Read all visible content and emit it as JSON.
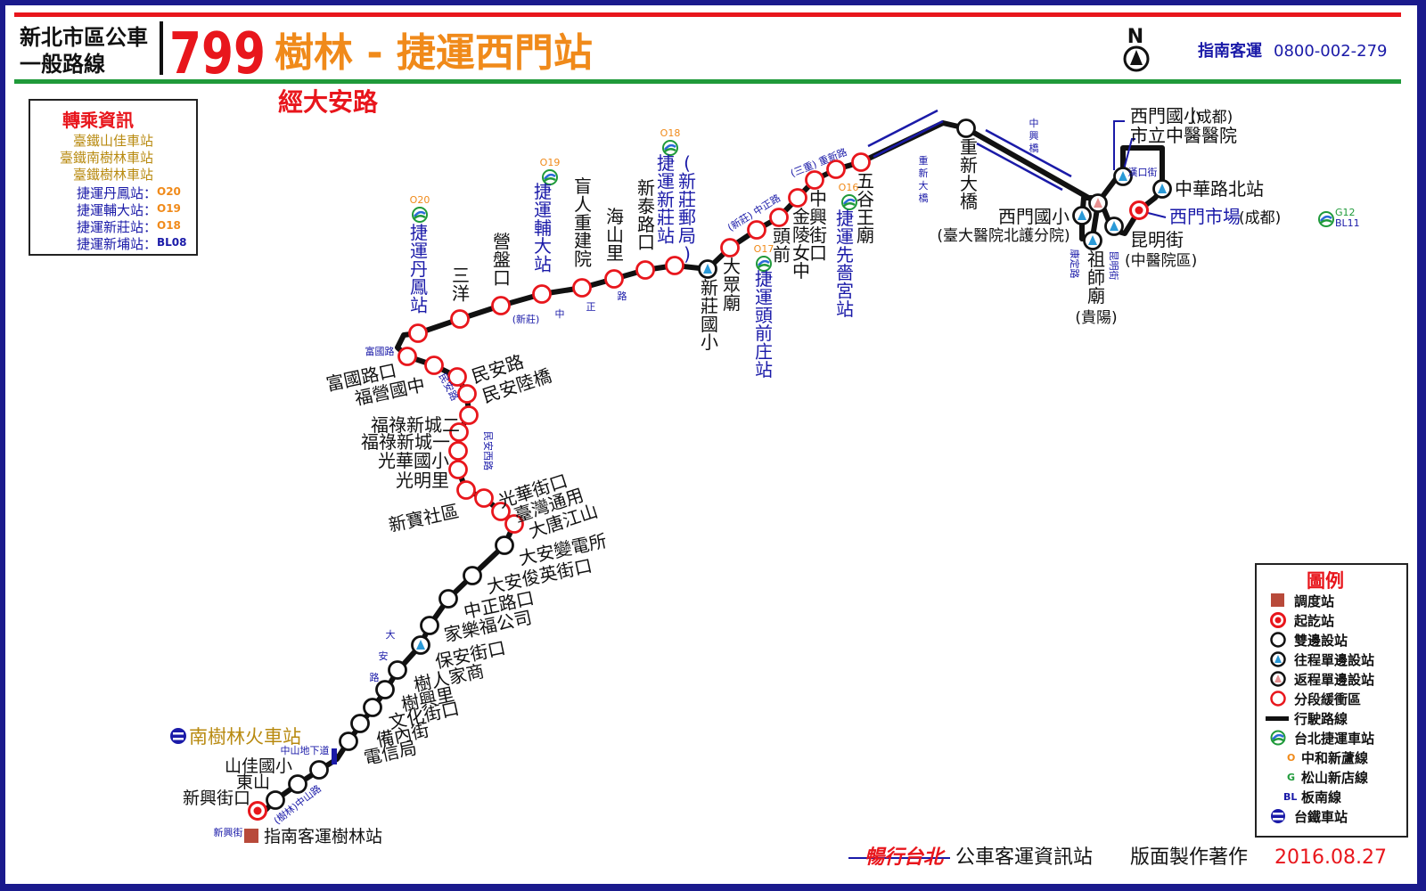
{
  "header": {
    "category_line1": "新北市區公車",
    "category_line2": "一般路線",
    "route_number": "799",
    "route_name": "樹林 - 捷運西門站",
    "via": "經大安路",
    "north_label": "N",
    "operator": "指南客運",
    "phone": "0800-002-279"
  },
  "transfer": {
    "title": "轉乘資訊",
    "rail": [
      "臺鐵山佳車站",
      "臺鐵南樹林車站",
      "臺鐵樹林車站"
    ],
    "metro": [
      {
        "name": "捷運丹鳳站：",
        "code": "O20"
      },
      {
        "name": "捷運輔大站：",
        "code": "O19"
      },
      {
        "name": "捷運新莊站：",
        "code": "O18"
      },
      {
        "name": "捷運新埔站：",
        "code": "BL08"
      }
    ]
  },
  "legend": {
    "title": "圖例",
    "items": [
      "調度站",
      "起訖站",
      "雙邊設站",
      "往程單邊設站",
      "返程單邊設站",
      "分段緩衝區",
      "行駛路線",
      "台北捷運車站"
    ],
    "lines": [
      {
        "code": "O",
        "name": "中和新蘆線"
      },
      {
        "code": "G",
        "name": "松山新店線"
      },
      {
        "code": "BL",
        "name": "板南線"
      }
    ],
    "rail_item": "台鐵車站"
  },
  "footer": {
    "brand": "暢行台北",
    "text": "公車客運資訊站",
    "credit": "版面製作著作",
    "date": "2016.08.27"
  },
  "colors": {
    "red": "#e8161c",
    "orange": "#f08a1a",
    "blue": "#1a1aa8",
    "green": "#1f9a3a",
    "gold": "#b88a10",
    "depot": "#b84a3a"
  },
  "map": {
    "depot_name": "指南客運樹林站",
    "rail_station": "南樹林火車站",
    "metro_codes": {
      "o20": "O20",
      "o19": "O19",
      "o18": "O18",
      "o17": "O17",
      "o16": "O16",
      "g12": "G12",
      "bl11": "BL11"
    },
    "stations": {
      "s01": "新興街口",
      "s02": "東山",
      "s03": "山佳國小",
      "s04": "電信局",
      "s05": "備內街",
      "s06": "文化街口",
      "s07": "樹興里",
      "s08": "樹人家商",
      "s09": "保安街口",
      "s10": "家樂福公司",
      "s11": "中正路口",
      "s12": "大安俊英街口",
      "s13": "大安變電所",
      "s14": "大唐江山",
      "s15": "臺灣通用",
      "s16": "光華街口",
      "s17": "新寶社區",
      "s18": "光明里",
      "s19": "光華國小",
      "s20": "福祿新城一",
      "s21": "福祿新城二",
      "s22": "民安陸橋",
      "s23": "民安路",
      "s24": "福營國中",
      "s25": "富國路口",
      "s26": "捷運丹鳳站",
      "s27": "三洋",
      "s28": "營盤口",
      "s29": "捷運輔大站",
      "s30": "盲人重建院",
      "s31": "海山里",
      "s32": "新泰路口",
      "s33": "捷運新莊站",
      "s33b": "(新莊郵局)",
      "s34": "新莊國小",
      "s35": "大眾廟",
      "s36": "捷運頭前庄站",
      "s37": "頭前",
      "s38": "金陵女中",
      "s39": "中興街口",
      "s40": "捷運先嗇宮站",
      "s41": "五谷王廟",
      "s42": "重新大橋",
      "s42b": "(臺大醫院北護分院)",
      "s43": "西門國小",
      "s44": "祖師廟",
      "s44b": "(貴陽)",
      "s45": "昆明街",
      "s45b": "(中醫院區)",
      "s46": "西門市場",
      "s46b": "(成都)",
      "s47": "中華路北站",
      "s48": "市立中醫醫院",
      "s49": "西門國小",
      "s49b": "(成都)"
    },
    "roads": {
      "r01": "新興街",
      "r02": "(樹林)中山路",
      "r03": "中山地下道",
      "r04": "大",
      "r05": "安",
      "r06": "路",
      "r07": "民安路",
      "r08": "民安西路",
      "r09": "富國路",
      "r10": "(新莊)",
      "r11": "中",
      "r12": "正",
      "r13": "路",
      "r14": "(新莊) 中正路",
      "r15": "(三重) 重新路",
      "r16": "重",
      "r17": "新",
      "r18": "大",
      "r19": "橋",
      "r20": "中",
      "r21": "興",
      "r22": "橋",
      "r23": "漢口街",
      "r24": "康定路",
      "r25": "昆明街"
    }
  }
}
